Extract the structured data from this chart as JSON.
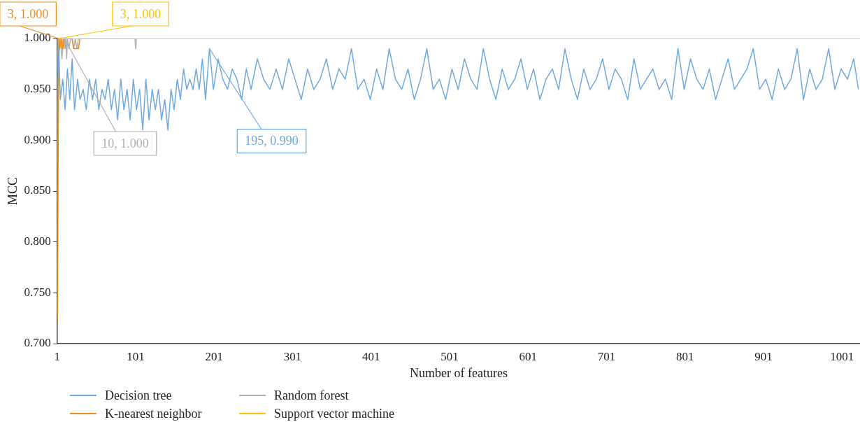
{
  "chart_data": {
    "type": "line",
    "xlabel": "Number of features",
    "ylabel": "MCC",
    "xlim": [
      1,
      1024
    ],
    "xticks": [
      1,
      101,
      201,
      301,
      401,
      501,
      601,
      701,
      801,
      901,
      1001
    ],
    "ylim": [
      0.7,
      1.0
    ],
    "yticks": [
      {
        "value": 0.7,
        "label": "0.700"
      },
      {
        "value": 0.75,
        "label": "0.750"
      },
      {
        "value": 0.8,
        "label": "0.800"
      },
      {
        "value": 0.85,
        "label": "0.850"
      },
      {
        "value": 0.9,
        "label": "0.900"
      },
      {
        "value": 0.95,
        "label": "0.950"
      },
      {
        "value": 1.0,
        "label": "1.000"
      }
    ],
    "grid": false,
    "legend": "bottom",
    "marker": "none",
    "line_style": "solid",
    "series": [
      {
        "name": "Decision tree",
        "color": "#6fa8dc",
        "x": [
          1,
          3,
          5,
          8,
          11,
          14,
          17,
          20,
          23,
          27,
          30,
          34,
          38,
          42,
          46,
          50,
          54,
          58,
          62,
          66,
          70,
          74,
          78,
          82,
          86,
          90,
          94,
          98,
          102,
          106,
          110,
          114,
          118,
          122,
          126,
          130,
          134,
          138,
          142,
          146,
          150,
          154,
          158,
          162,
          166,
          170,
          174,
          178,
          182,
          186,
          190,
          195,
          200,
          206,
          212,
          218,
          224,
          230,
          236,
          242,
          248,
          256,
          264,
          272,
          280,
          288,
          296,
          304,
          312,
          320,
          328,
          336,
          344,
          352,
          360,
          368,
          376,
          384,
          392,
          400,
          408,
          416,
          424,
          432,
          440,
          448,
          456,
          464,
          472,
          480,
          488,
          496,
          504,
          512,
          520,
          528,
          536,
          544,
          552,
          560,
          568,
          576,
          584,
          592,
          600,
          608,
          616,
          624,
          632,
          640,
          648,
          656,
          664,
          672,
          680,
          688,
          696,
          704,
          712,
          720,
          728,
          736,
          744,
          752,
          760,
          768,
          776,
          784,
          792,
          800,
          808,
          816,
          824,
          832,
          840,
          848,
          856,
          864,
          872,
          880,
          888,
          896,
          904,
          912,
          920,
          928,
          936,
          944,
          952,
          960,
          968,
          976,
          984,
          992,
          1000,
          1008,
          1016,
          1022
        ],
        "values": [
          0.96,
          0.99,
          0.94,
          0.96,
          0.93,
          0.97,
          0.94,
          0.98,
          0.93,
          0.96,
          0.94,
          0.95,
          0.93,
          0.96,
          0.94,
          0.96,
          0.93,
          0.95,
          0.94,
          0.96,
          0.93,
          0.95,
          0.92,
          0.96,
          0.93,
          0.95,
          0.92,
          0.96,
          0.93,
          0.95,
          0.91,
          0.96,
          0.92,
          0.95,
          0.93,
          0.95,
          0.92,
          0.94,
          0.91,
          0.95,
          0.93,
          0.96,
          0.94,
          0.97,
          0.95,
          0.96,
          0.95,
          0.97,
          0.95,
          0.98,
          0.94,
          0.99,
          0.95,
          0.98,
          0.96,
          0.95,
          0.97,
          0.96,
          0.94,
          0.97,
          0.95,
          0.98,
          0.96,
          0.95,
          0.97,
          0.95,
          0.98,
          0.96,
          0.94,
          0.97,
          0.95,
          0.96,
          0.98,
          0.95,
          0.97,
          0.96,
          0.99,
          0.95,
          0.96,
          0.94,
          0.97,
          0.95,
          0.99,
          0.96,
          0.95,
          0.97,
          0.94,
          0.96,
          0.99,
          0.95,
          0.96,
          0.94,
          0.97,
          0.95,
          0.98,
          0.96,
          0.95,
          0.99,
          0.96,
          0.94,
          0.97,
          0.95,
          0.96,
          0.98,
          0.95,
          0.97,
          0.94,
          0.96,
          0.97,
          0.95,
          0.99,
          0.96,
          0.94,
          0.97,
          0.95,
          0.96,
          0.98,
          0.95,
          0.97,
          0.96,
          0.94,
          0.98,
          0.95,
          0.96,
          0.97,
          0.95,
          0.96,
          0.94,
          0.99,
          0.95,
          0.98,
          0.96,
          0.95,
          0.97,
          0.94,
          0.96,
          0.98,
          0.95,
          0.96,
          0.97,
          0.99,
          0.95,
          0.96,
          0.94,
          0.97,
          0.95,
          0.96,
          0.99,
          0.94,
          0.97,
          0.95,
          0.96,
          0.99,
          0.95,
          0.97,
          0.96,
          0.98,
          0.95
        ]
      },
      {
        "name": "K-nearest neighbor",
        "color": "#f08a1c",
        "x": [
          1,
          2,
          3,
          4,
          6,
          8,
          10,
          12,
          14,
          16,
          18,
          20,
          22,
          24,
          26,
          28,
          30
        ],
        "values": [
          0.72,
          0.87,
          1.0,
          0.99,
          1.0,
          0.99,
          1.0,
          1.0,
          1.0,
          1.0,
          1.0,
          1.0,
          0.99,
          0.99,
          0.99,
          0.99,
          1.0
        ]
      },
      {
        "name": "Random forest",
        "color": "#b0b0b0",
        "x": [
          1,
          2,
          3,
          4,
          5,
          6,
          7,
          8,
          9,
          10,
          11,
          12,
          13,
          14,
          16,
          18,
          20,
          22,
          24,
          26,
          28,
          98,
          100,
          101,
          102,
          104
        ],
        "values": [
          0.97,
          0.99,
          0.98,
          0.99,
          1.0,
          0.99,
          0.98,
          0.99,
          1.0,
          1.0,
          0.99,
          1.0,
          0.98,
          1.0,
          0.99,
          1.0,
          1.0,
          0.99,
          1.0,
          0.99,
          1.0,
          1.0,
          1.0,
          0.99,
          1.0,
          1.0
        ]
      },
      {
        "name": "Support vector machine",
        "color": "#ffc000",
        "x": [
          1,
          2,
          3,
          4,
          5,
          6,
          7,
          8,
          9,
          10,
          1024
        ],
        "values": [
          0.725,
          0.86,
          1.0,
          0.99,
          1.0,
          0.99,
          0.99,
          1.0,
          0.99,
          1.0,
          1.0
        ]
      }
    ],
    "annotations": [
      {
        "text": "195, 0.990",
        "x": 195,
        "y": 0.99
      },
      {
        "text": "3, 1.000",
        "x": 3,
        "y": 1.0
      },
      {
        "text": "10, 1.000",
        "x": 10,
        "y": 1.0
      },
      {
        "text": "3, 1.000",
        "x": 3,
        "y": 1.0
      }
    ]
  }
}
